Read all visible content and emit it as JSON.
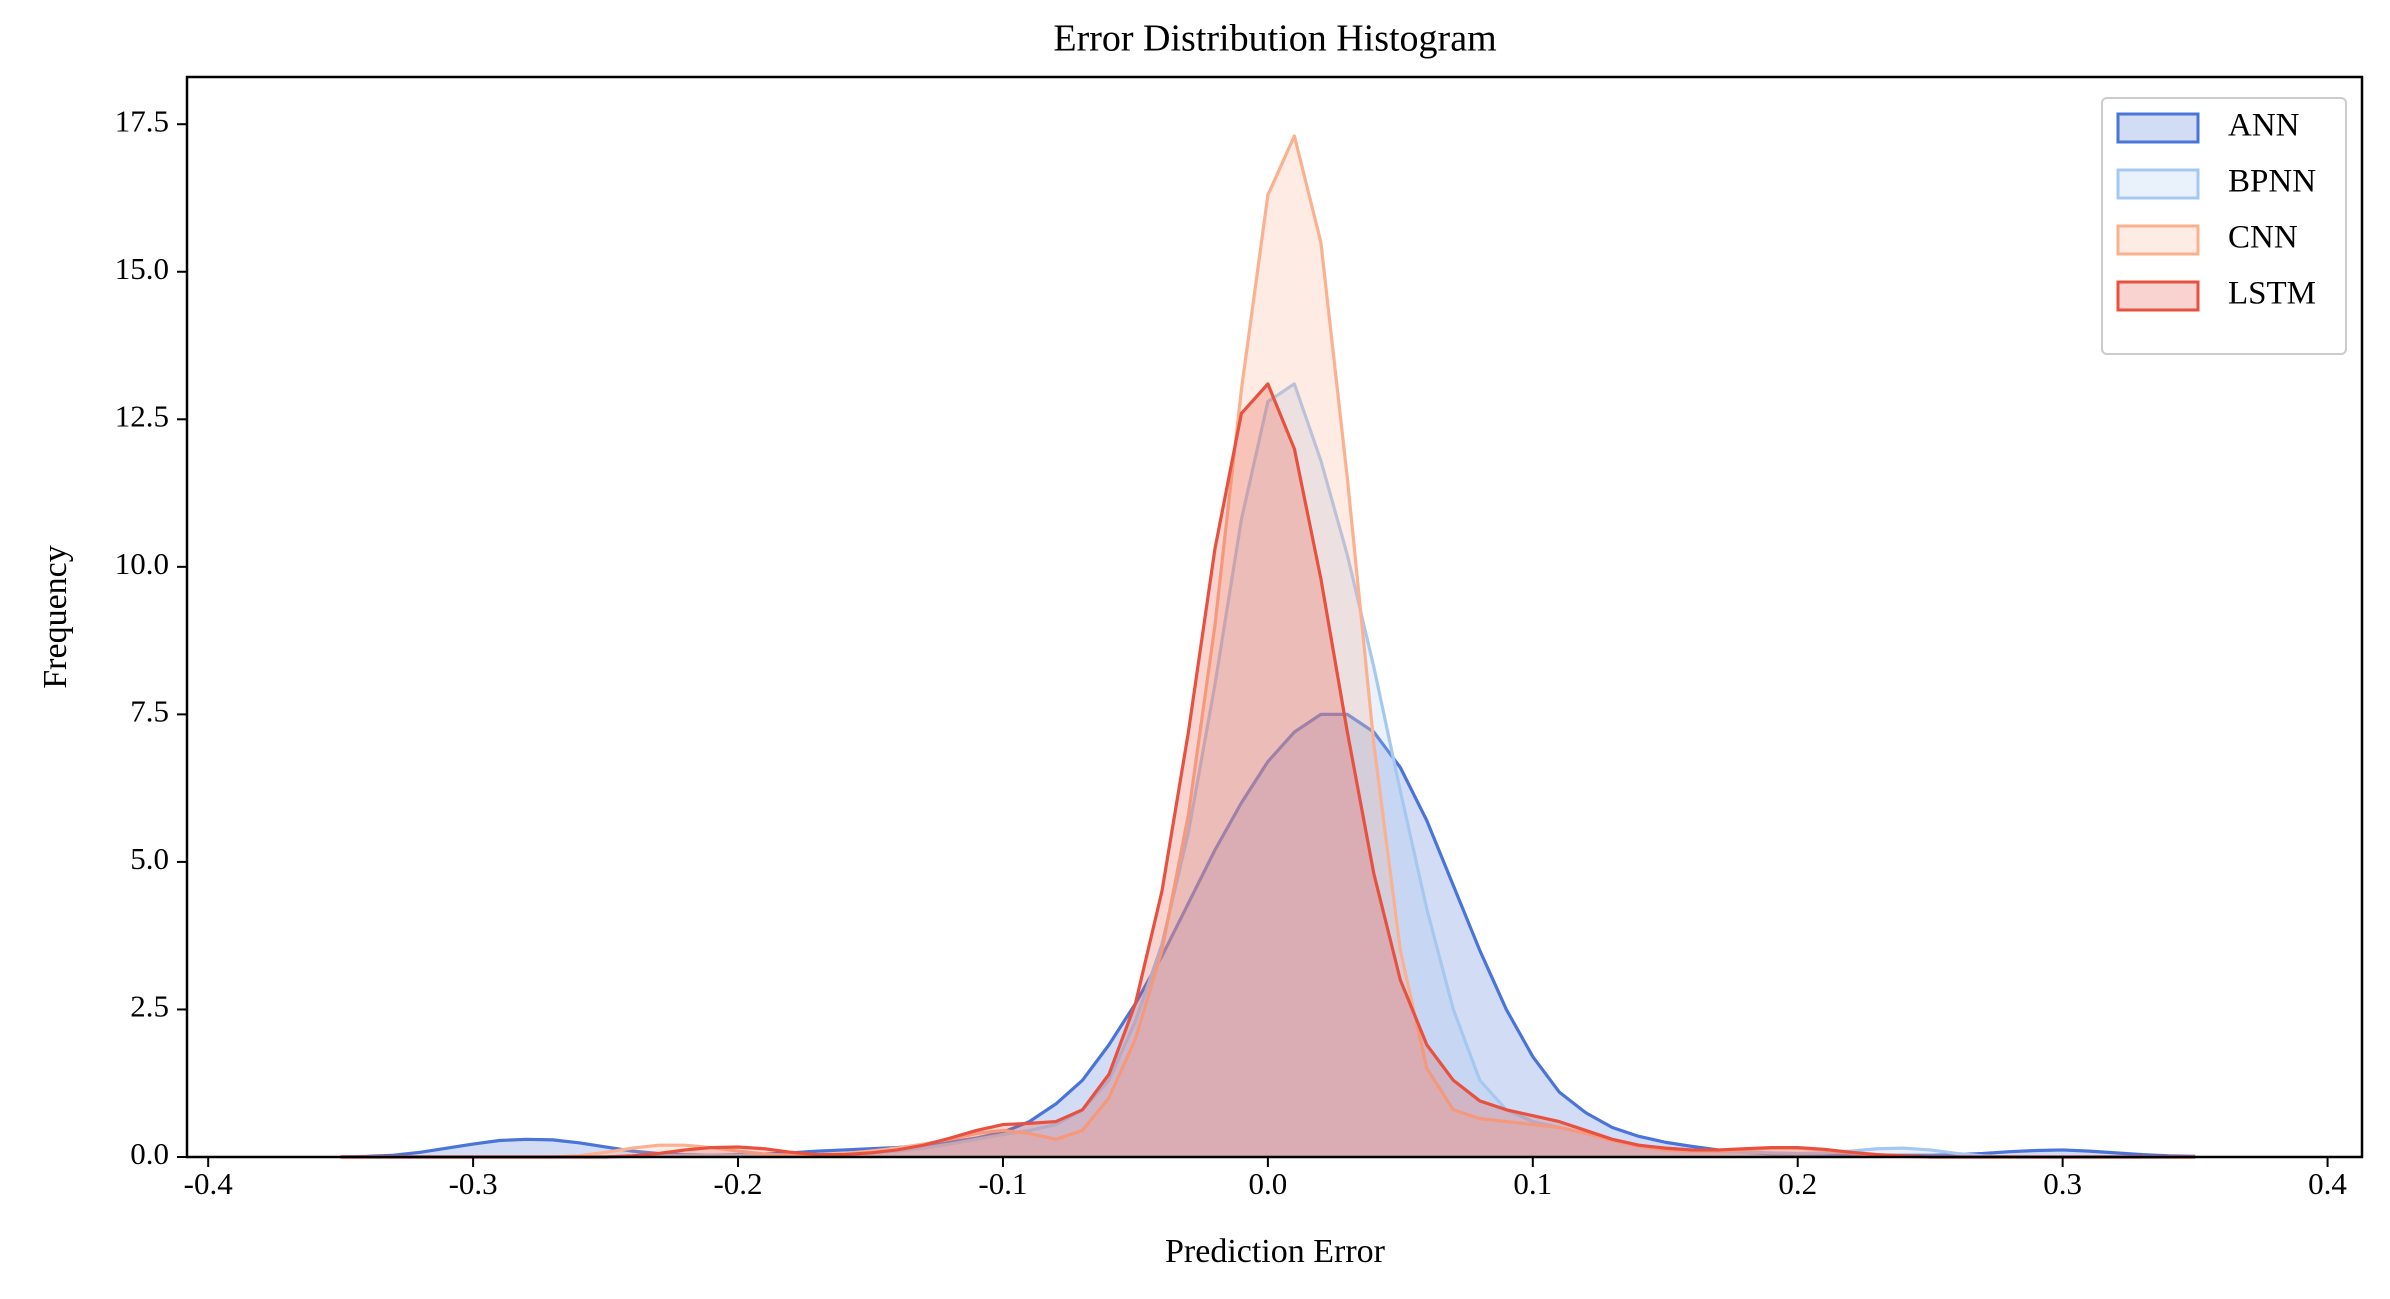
{
  "chart_data": {
    "type": "kde",
    "title": "Error Distribution Histogram",
    "x_label": "Prediction Error",
    "y_label": "Frequency",
    "xlim": [
      -0.408,
      0.413
    ],
    "ylim": [
      0,
      18.3
    ],
    "xticks": [
      -0.4,
      -0.3,
      -0.2,
      -0.1,
      {
        "value": 0,
        "label": "0.0"
      },
      0.1,
      0.2,
      0.3,
      0.4
    ],
    "yticks": [
      {
        "value": 0,
        "label": "0.0"
      },
      2.5,
      {
        "value": 5,
        "label": "5.0"
      },
      7.5,
      {
        "value": 10,
        "label": "10.0"
      },
      12.5,
      {
        "value": 15,
        "label": "15.0"
      },
      17.5
    ],
    "legend": "upper right",
    "x": [
      -0.35,
      -0.34,
      -0.33,
      -0.32,
      -0.31,
      -0.3,
      -0.29,
      -0.28,
      -0.27,
      -0.26,
      -0.25,
      -0.24,
      -0.23,
      -0.22,
      -0.21,
      -0.2,
      -0.19,
      -0.18,
      -0.17,
      -0.16,
      -0.15,
      -0.14,
      -0.13,
      -0.12,
      -0.11,
      -0.1,
      -0.09,
      -0.08,
      -0.07,
      -0.06,
      -0.05,
      -0.04,
      -0.03,
      -0.02,
      -0.01,
      0,
      0.01,
      0.02,
      0.03,
      0.04,
      0.05,
      0.06,
      0.07,
      0.08,
      0.09,
      0.1,
      0.11,
      0.12,
      0.13,
      0.14,
      0.15,
      0.16,
      0.17,
      0.18,
      0.19,
      0.2,
      0.21,
      0.22,
      0.23,
      0.24,
      0.25,
      0.26,
      0.27,
      0.28,
      0.29,
      0.3,
      0.31,
      0.32,
      0.33,
      0.34,
      0.35
    ],
    "series": [
      {
        "name": "ANN",
        "color": "#4a74d9",
        "values": [
          0,
          0.01,
          0.03,
          0.08,
          0.15,
          0.22,
          0.28,
          0.3,
          0.29,
          0.24,
          0.17,
          0.1,
          0.06,
          0.04,
          0.03,
          0.04,
          0.05,
          0.07,
          0.1,
          0.12,
          0.14,
          0.16,
          0.2,
          0.25,
          0.32,
          0.42,
          0.6,
          0.9,
          1.3,
          1.9,
          2.6,
          3.4,
          4.3,
          5.2,
          6.0,
          6.7,
          7.2,
          7.5,
          7.5,
          7.2,
          6.6,
          5.7,
          4.6,
          3.5,
          2.5,
          1.7,
          1.1,
          0.75,
          0.5,
          0.35,
          0.25,
          0.18,
          0.12,
          0.08,
          0.05,
          0.04,
          0.03,
          0.03,
          0.03,
          0.03,
          0.03,
          0.04,
          0.06,
          0.09,
          0.11,
          0.12,
          0.1,
          0.07,
          0.04,
          0.02,
          0.01
        ]
      },
      {
        "name": "BPNN",
        "color": "#a6c8f0",
        "values": [
          0,
          0,
          0,
          0,
          0,
          0,
          0,
          0,
          0,
          0,
          0,
          0.01,
          0.02,
          0.03,
          0.03,
          0.03,
          0.03,
          0.03,
          0.04,
          0.05,
          0.07,
          0.1,
          0.15,
          0.22,
          0.3,
          0.38,
          0.45,
          0.55,
          0.8,
          1.3,
          2.3,
          3.6,
          5.5,
          8.0,
          10.8,
          12.8,
          13.1,
          11.8,
          10.2,
          8.3,
          6.2,
          4.2,
          2.5,
          1.3,
          0.8,
          0.6,
          0.5,
          0.4,
          0.3,
          0.2,
          0.15,
          0.12,
          0.1,
          0.08,
          0.07,
          0.06,
          0.07,
          0.1,
          0.14,
          0.15,
          0.12,
          0.06,
          0.02,
          0,
          0,
          0,
          0,
          0,
          0,
          0,
          0
        ]
      },
      {
        "name": "CNN",
        "color": "#fbb08f",
        "values": [
          0,
          0,
          0,
          0,
          0,
          0,
          0,
          0,
          0,
          0.02,
          0.08,
          0.15,
          0.2,
          0.2,
          0.16,
          0.1,
          0.05,
          0.03,
          0.04,
          0.06,
          0.1,
          0.15,
          0.22,
          0.3,
          0.4,
          0.45,
          0.4,
          0.3,
          0.45,
          1.0,
          2.0,
          3.5,
          5.8,
          9.0,
          13.0,
          16.3,
          17.3,
          15.5,
          11.5,
          7.0,
          3.5,
          1.5,
          0.8,
          0.65,
          0.6,
          0.55,
          0.5,
          0.4,
          0.28,
          0.18,
          0.12,
          0.1,
          0.1,
          0.12,
          0.15,
          0.15,
          0.12,
          0.07,
          0.03,
          0.01,
          0,
          0,
          0,
          0,
          0,
          0,
          0,
          0,
          0,
          0,
          0
        ]
      },
      {
        "name": "LSTM",
        "color": "#e8513f",
        "values": [
          0,
          0,
          0,
          0,
          0,
          0,
          0,
          0,
          0,
          0,
          0,
          0.02,
          0.06,
          0.12,
          0.16,
          0.17,
          0.14,
          0.08,
          0.04,
          0.04,
          0.07,
          0.12,
          0.2,
          0.32,
          0.45,
          0.55,
          0.57,
          0.6,
          0.8,
          1.4,
          2.6,
          4.5,
          7.2,
          10.3,
          12.6,
          13.1,
          12.0,
          9.8,
          7.2,
          4.8,
          3.0,
          1.9,
          1.3,
          0.95,
          0.8,
          0.7,
          0.6,
          0.45,
          0.3,
          0.2,
          0.15,
          0.12,
          0.12,
          0.14,
          0.16,
          0.16,
          0.13,
          0.08,
          0.04,
          0.02,
          0,
          0,
          0,
          0,
          0,
          0,
          0,
          0,
          0,
          0,
          0
        ]
      }
    ]
  }
}
